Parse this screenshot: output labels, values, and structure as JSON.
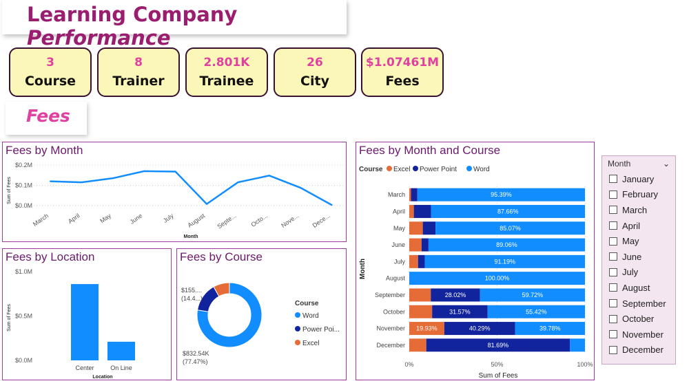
{
  "header": {
    "title_main": "Learning Company ",
    "title_emph": "Performance"
  },
  "kpis": [
    {
      "value": "3",
      "label": "Course"
    },
    {
      "value": "8",
      "label": "Trainer"
    },
    {
      "value": "2.801K",
      "label": "Trainee"
    },
    {
      "value": "26",
      "label": "City"
    },
    {
      "value": "$1.07461M",
      "label": "Fees"
    }
  ],
  "section_label": "Fees",
  "colors": {
    "excel": "#e66c37",
    "powerpoint": "#12239e",
    "word": "#118dff",
    "title": "#9b1d6f",
    "kpi_bg": "#fbf7b8"
  },
  "chart_data": [
    {
      "type": "line",
      "title": "Fees by Month",
      "xlabel": "Month",
      "ylabel": "Sum of Fees",
      "yticks": [
        "$0.0M",
        "$0.1M",
        "$0.2M"
      ],
      "ylim": [
        0,
        0.2
      ],
      "categories": [
        "March",
        "April",
        "May",
        "June",
        "July",
        "August",
        "Septe...",
        "Octo...",
        "Nove...",
        "Dece..."
      ],
      "values": [
        0.12,
        0.115,
        0.135,
        0.17,
        0.168,
        0.008,
        0.115,
        0.148,
        0.088,
        0.003
      ]
    },
    {
      "type": "bar",
      "title": "Fees by Location",
      "xlabel": "Location",
      "ylabel": "Sum of Fees",
      "yticks": [
        "$0.0M",
        "$0.5M",
        "$1.0M"
      ],
      "ylim": [
        0,
        1.0
      ],
      "categories": [
        "Center",
        "On Line"
      ],
      "values": [
        0.86,
        0.21
      ]
    },
    {
      "type": "pie",
      "title": "Fees by Course",
      "legend_title": "Course",
      "legend": [
        "Word",
        "Power Poi...",
        "Excel"
      ],
      "slices": [
        {
          "name": "Word",
          "value": 77.47,
          "label1": "$832.54K",
          "label2": "(77.47%)"
        },
        {
          "name": "Power Point",
          "value": 14.4,
          "label1": "$155....",
          "label2": "(14.4...)"
        },
        {
          "name": "Excel",
          "value": 8.13
        }
      ]
    },
    {
      "type": "bar",
      "title": "Fees by Month and Course",
      "xlabel": "Sum of Fees",
      "ylabel": "Month",
      "legend_title": "Course",
      "legend": [
        "Excel",
        "Power Point",
        "Word"
      ],
      "xticks": [
        "0%",
        "50%",
        "100%"
      ],
      "categories": [
        "March",
        "April",
        "May",
        "June",
        "July",
        "August",
        "September",
        "October",
        "November",
        "December"
      ],
      "series": [
        {
          "name": "Excel",
          "values": [
            1.0,
            2.6,
            7.7,
            7.0,
            5.0,
            0,
            12.26,
            13.01,
            19.93,
            9.7
          ],
          "labels": [
            "",
            "",
            "",
            "",
            "",
            "",
            "",
            "",
            "19.93%",
            ""
          ]
        },
        {
          "name": "Power Point",
          "values": [
            3.61,
            9.74,
            7.23,
            3.94,
            3.81,
            0,
            28.02,
            31.57,
            40.29,
            81.69
          ],
          "labels": [
            "",
            "",
            "",
            "",
            "",
            "",
            "28.02%",
            "31.57%",
            "40.29%",
            "81.69%"
          ]
        },
        {
          "name": "Word",
          "values": [
            95.39,
            87.66,
            85.07,
            89.06,
            91.19,
            100,
            59.72,
            55.42,
            39.78,
            8.61
          ],
          "labels": [
            "95.39%",
            "87.66%",
            "85.07%",
            "89.06%",
            "91.19%",
            "100.00%",
            "59.72%",
            "55.42%",
            "39.78%",
            ""
          ]
        }
      ]
    }
  ],
  "slicer": {
    "title": "Month",
    "items": [
      "January",
      "February",
      "March",
      "April",
      "May",
      "June",
      "July",
      "August",
      "September",
      "October",
      "November",
      "December"
    ]
  }
}
